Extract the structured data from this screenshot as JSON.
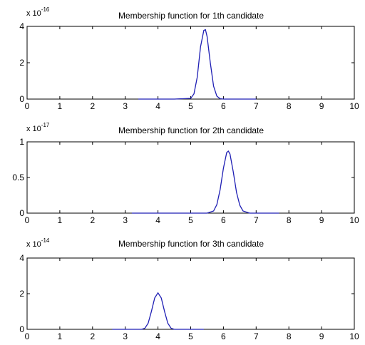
{
  "figure": {
    "background": "#ffffff",
    "axes_color": "#000000",
    "line_color": "#1f1fb4"
  },
  "chart_data": [
    {
      "type": "line",
      "title": "Membership function for 1th candidate",
      "xlabel": "",
      "ylabel": "",
      "scale_base": "x 10",
      "scale_exponent": "-16",
      "xlim": [
        0,
        10
      ],
      "ylim": [
        0,
        4
      ],
      "xticks": [
        0,
        1,
        2,
        3,
        4,
        5,
        6,
        7,
        8,
        9,
        10
      ],
      "yticks": [
        0,
        2,
        4
      ],
      "grid": false,
      "series": [
        {
          "x": [
            3.4,
            4.0,
            4.5,
            5.0,
            5.1,
            5.2,
            5.3,
            5.4,
            5.45,
            5.5,
            5.6,
            5.7,
            5.8,
            5.9,
            6.0,
            6.5,
            7.0
          ],
          "y": [
            0,
            0,
            0,
            0.04,
            0.29,
            1.21,
            2.88,
            3.78,
            3.82,
            3.44,
            2.0,
            0.71,
            0.16,
            0.02,
            0,
            0,
            0
          ]
        }
      ]
    },
    {
      "type": "line",
      "title": "Membership function for 2th candidate",
      "xlabel": "",
      "ylabel": "",
      "scale_base": "x 10",
      "scale_exponent": "-17",
      "xlim": [
        0,
        10
      ],
      "ylim": [
        0,
        1
      ],
      "xticks": [
        0,
        1,
        2,
        3,
        4,
        5,
        6,
        7,
        8,
        9,
        10
      ],
      "yticks": [
        0,
        0.5,
        1
      ],
      "ytick_labels": [
        "0",
        "0.5",
        "1"
      ],
      "grid": false,
      "series": [
        {
          "x": [
            3.2,
            4.0,
            5.0,
            5.5,
            5.7,
            5.8,
            5.9,
            6.0,
            6.1,
            6.15,
            6.2,
            6.3,
            6.4,
            6.5,
            6.6,
            6.8,
            7.7
          ],
          "y": [
            0,
            0,
            0,
            0,
            0.03,
            0.12,
            0.33,
            0.63,
            0.85,
            0.87,
            0.83,
            0.58,
            0.29,
            0.11,
            0.03,
            0,
            0
          ]
        }
      ]
    },
    {
      "type": "line",
      "title": "Membership function for 3th candidate",
      "xlabel": "",
      "ylabel": "",
      "scale_base": "x 10",
      "scale_exponent": "-14",
      "xlim": [
        0,
        10
      ],
      "ylim": [
        0,
        4
      ],
      "xticks": [
        0,
        1,
        2,
        3,
        4,
        5,
        6,
        7,
        8,
        9,
        10
      ],
      "yticks": [
        0,
        2,
        4
      ],
      "grid": false,
      "series": [
        {
          "x": [
            2.6,
            3.2,
            3.5,
            3.6,
            3.7,
            3.8,
            3.9,
            4.0,
            4.1,
            4.2,
            4.3,
            4.4,
            4.5,
            4.8,
            5.4
          ],
          "y": [
            0,
            0,
            0,
            0.06,
            0.34,
            1.01,
            1.76,
            2.05,
            1.76,
            1.01,
            0.34,
            0.06,
            0,
            0,
            0
          ]
        }
      ]
    }
  ]
}
